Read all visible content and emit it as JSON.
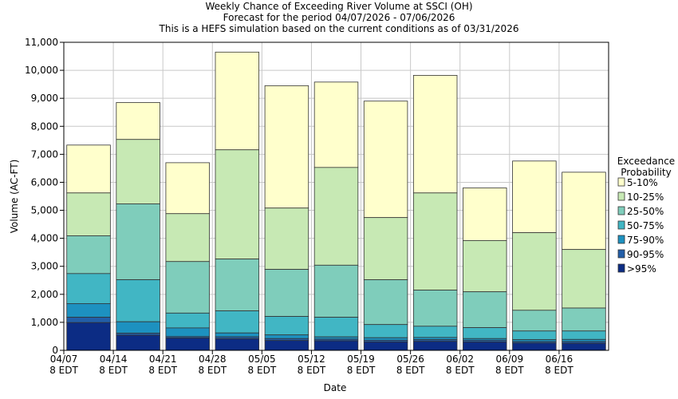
{
  "chart_data": {
    "type": "bar",
    "stacked": true,
    "title": "Weekly Chance of Exceeding River Volume at SSCI (OH)",
    "subtitle_1": "Forecast for the period 04/07/2026 - 07/06/2026",
    "subtitle_2": "This is a HEFS simulation based on the current conditions as of 03/31/2026",
    "xlabel": "Date",
    "ylabel": "Volume (AC-FT)",
    "ylim": [
      0,
      11000
    ],
    "yticks": [
      "0",
      "1,000",
      "2,000",
      "3,000",
      "4,000",
      "5,000",
      "6,000",
      "7,000",
      "8,000",
      "9,000",
      "10,000",
      "11,000"
    ],
    "xticks": [
      {
        "date": "04/07",
        "tz": "8 EDT"
      },
      {
        "date": "04/14",
        "tz": "8 EDT"
      },
      {
        "date": "04/21",
        "tz": "8 EDT"
      },
      {
        "date": "04/28",
        "tz": "8 EDT"
      },
      {
        "date": "05/05",
        "tz": "8 EDT"
      },
      {
        "date": "05/12",
        "tz": "8 EDT"
      },
      {
        "date": "05/19",
        "tz": "8 EDT"
      },
      {
        "date": "05/26",
        "tz": "8 EDT"
      },
      {
        "date": "06/02",
        "tz": "8 EDT"
      },
      {
        "date": "06/09",
        "tz": "8 EDT"
      },
      {
        "date": "06/16",
        "tz": "8 EDT"
      }
    ],
    "grid": true,
    "legend_title_1": "Exceedance",
    "legend_title_2": "Probability",
    "legend_position": "right",
    "series": [
      {
        "name": "5-10%",
        "color": "#ffffcc",
        "tops": [
          7330,
          8850,
          6700,
          10650,
          9450,
          9580,
          8900,
          9820,
          5800,
          6760,
          6360
        ]
      },
      {
        "name": "10-25%",
        "color": "#c7e9b4",
        "tops": [
          5620,
          7530,
          4880,
          7160,
          5080,
          6530,
          4740,
          5620,
          3920,
          4200,
          3600
        ]
      },
      {
        "name": "25-50%",
        "color": "#7fcdbb",
        "tops": [
          4090,
          5230,
          3170,
          3260,
          2890,
          3040,
          2520,
          2150,
          2090,
          1430,
          1510
        ]
      },
      {
        "name": "50-75%",
        "color": "#41b6c4",
        "tops": [
          2740,
          2520,
          1330,
          1410,
          1210,
          1180,
          920,
          860,
          810,
          690,
          690
        ]
      },
      {
        "name": "75-90%",
        "color": "#1d91c0",
        "tops": [
          1670,
          1020,
          800,
          620,
          550,
          480,
          450,
          460,
          420,
          380,
          390
        ]
      },
      {
        "name": "90-95%",
        "color": "#225ea8",
        "tops": [
          1180,
          610,
          490,
          480,
          420,
          400,
          360,
          380,
          360,
          310,
          310
        ]
      },
      {
        "name": ">95%",
        "color": "#0c2c84",
        "tops": [
          990,
          540,
          440,
          410,
          350,
          340,
          300,
          320,
          300,
          260,
          250
        ]
      }
    ]
  }
}
